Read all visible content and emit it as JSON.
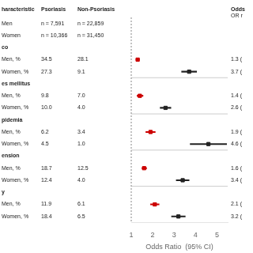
{
  "chart_data": {
    "type": "forest",
    "columns": [
      "haracteristic",
      "Psoriasis",
      "Non-Psoriasis",
      "Odds"
    ],
    "or_subheader": "OR r",
    "categories": [
      "Men",
      "Women",
      "co",
      "Men, %",
      "Women, %",
      "es mellitus",
      "Men, %",
      "Women, %",
      "pidemia",
      "Men, %",
      "Women, %",
      "ension",
      "Men, %",
      "Women, %",
      "y",
      "Men, %",
      "Women, %"
    ],
    "psoriasis": [
      "n = 7,591",
      "n = 10,366",
      null,
      "34.5",
      "27.3",
      null,
      "9.8",
      "10.0",
      null,
      "6.2",
      "4.5",
      null,
      "18.7",
      "12.4",
      null,
      "11.9",
      "18.4"
    ],
    "non_psoriasis": [
      "n = 22,859",
      "n = 31,450",
      null,
      "28.1",
      "9.1",
      null,
      "7.0",
      "4.0",
      null,
      "3.4",
      "1.0",
      null,
      "12.5",
      "4.0",
      null,
      "6.1",
      "6.5"
    ],
    "series": [
      {
        "color": "#cc0000",
        "marker": "square",
        "values": [
          null,
          null,
          null,
          1.3,
          null,
          null,
          1.4,
          null,
          null,
          1.9,
          null,
          null,
          1.6,
          null,
          null,
          2.1,
          null
        ],
        "lo": [
          null,
          null,
          null,
          1.22,
          null,
          null,
          1.27,
          null,
          null,
          1.68,
          null,
          null,
          1.5,
          null,
          null,
          1.9,
          null
        ],
        "hi": [
          null,
          null,
          null,
          1.38,
          null,
          null,
          1.55,
          null,
          null,
          2.12,
          null,
          null,
          1.72,
          null,
          null,
          2.3,
          null
        ],
        "value_labels": [
          null,
          null,
          null,
          "1.3 (",
          null,
          null,
          "1.4 (",
          null,
          null,
          "1.9 (",
          null,
          null,
          "1.6 (",
          null,
          null,
          "2.1 (",
          null
        ]
      },
      {
        "color": "#222222",
        "marker": "square",
        "values": [
          null,
          null,
          null,
          null,
          3.7,
          null,
          null,
          2.6,
          null,
          null,
          4.6,
          null,
          null,
          3.4,
          null,
          null,
          3.2
        ],
        "lo": [
          null,
          null,
          null,
          null,
          3.35,
          null,
          null,
          2.35,
          null,
          null,
          3.75,
          null,
          null,
          3.1,
          null,
          null,
          2.88
        ],
        "hi": [
          null,
          null,
          null,
          null,
          4.05,
          null,
          null,
          2.85,
          null,
          null,
          5.45,
          null,
          null,
          3.7,
          null,
          null,
          3.52
        ],
        "value_labels": [
          null,
          null,
          null,
          null,
          "3.7 (",
          null,
          null,
          "2.6 (",
          null,
          null,
          "4.6 (",
          null,
          null,
          "3.4 (",
          null,
          null,
          "3.2 ("
        ]
      }
    ],
    "reference_line": 1,
    "xlabel": "Odds Ratio  (95% CI)",
    "xlim": [
      1,
      5.5
    ],
    "xticks": [
      1,
      2,
      3,
      4,
      5
    ],
    "tick_labels": "x",
    "grid": false
  }
}
